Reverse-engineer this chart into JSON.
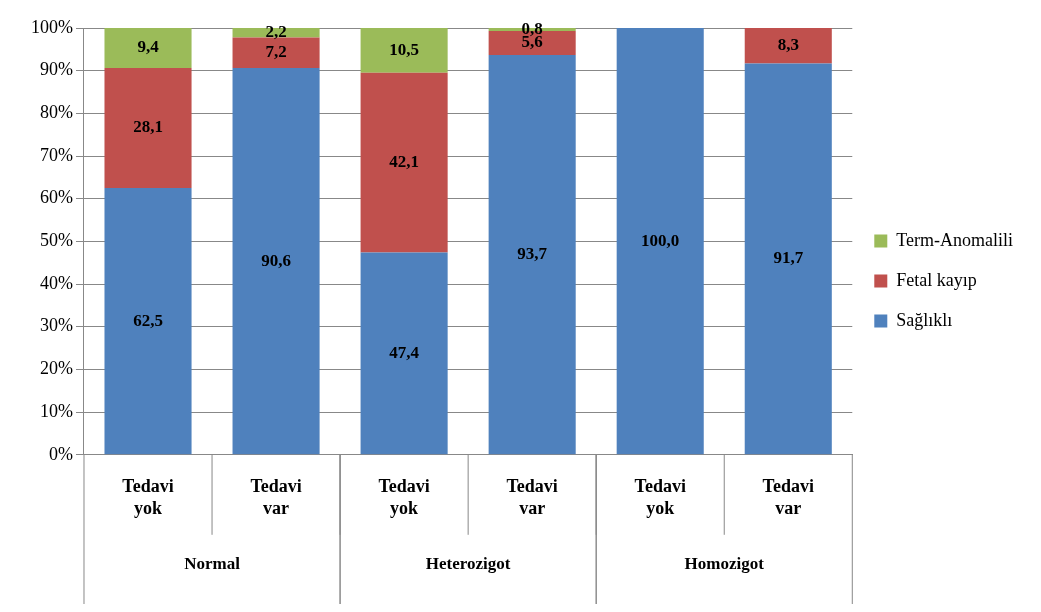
{
  "chart_data": {
    "type": "bar",
    "stacked": true,
    "categories": [
      "Tedavi yok",
      "Tedavi var",
      "Tedavi yok",
      "Tedavi var",
      "Tedavi yok",
      "Tedavi var"
    ],
    "annotations": [
      "Normal",
      "Heterozigot",
      "Homozigot"
    ],
    "series": [
      {
        "name": "Sağlıklı",
        "color": "#4f81bd",
        "values": [
          62.5,
          90.6,
          47.4,
          93.7,
          100,
          91.7
        ],
        "value_labels": [
          "62,5",
          "90,6",
          "47,4",
          "93,7",
          "100,0",
          "91,7"
        ]
      },
      {
        "name": "Fetal kayıp",
        "color": "#c0504d",
        "values": [
          28.1,
          7.2,
          42.1,
          5.6,
          0,
          8.3
        ],
        "value_labels": [
          "28,1",
          "7,2",
          "42,1",
          "5,6",
          null,
          "8,3"
        ]
      },
      {
        "name": "Term-Anomalili",
        "color": "#9bbb59",
        "values": [
          9.4,
          2.2,
          10.5,
          0.8,
          0,
          0
        ],
        "value_labels": [
          "9,4",
          "2,2",
          "10,5",
          "0,8",
          null,
          null
        ]
      }
    ],
    "ylim": [
      0,
      100
    ],
    "yticks": [
      {
        "value": 0,
        "label": "0%"
      },
      {
        "value": 10,
        "label": "10%"
      },
      {
        "value": 20,
        "label": "20%"
      },
      {
        "value": 30,
        "label": "30%"
      },
      {
        "value": 40,
        "label": "40%"
      },
      {
        "value": 50,
        "label": "50%"
      },
      {
        "value": 60,
        "label": "60%"
      },
      {
        "value": 70,
        "label": "70%"
      },
      {
        "value": 80,
        "label": "80%"
      },
      {
        "value": 90,
        "label": "90%"
      },
      {
        "value": 100,
        "label": "100%"
      }
    ],
    "grid": "y",
    "legend": "right"
  }
}
